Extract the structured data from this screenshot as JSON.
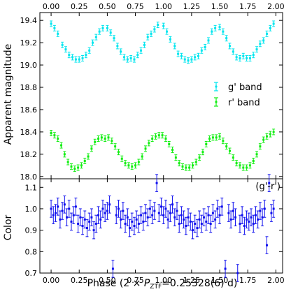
{
  "chart_data": [
    {
      "type": "scatter",
      "panel": "top",
      "xlabel": "",
      "ylabel": "Apparent magnitude",
      "xlim": [
        -0.1,
        2.06
      ],
      "ylim": [
        19.47,
        17.98
      ],
      "y_inverted": true,
      "x_ticks": [
        "0.00",
        "0.25",
        "0.50",
        "0.75",
        "1.00",
        "1.25",
        "1.50",
        "1.75",
        "2.00"
      ],
      "x_tick_values": [
        0,
        0.25,
        0.5,
        0.75,
        1.0,
        1.25,
        1.5,
        1.75,
        2.0
      ],
      "y_ticks": [
        "18.0",
        "18.2",
        "18.4",
        "18.6",
        "18.8",
        "19.0",
        "19.2",
        "19.4"
      ],
      "y_tick_values": [
        18.0,
        18.2,
        18.4,
        18.6,
        18.8,
        19.0,
        19.2,
        19.4
      ],
      "legend_position": "right-center",
      "series": [
        {
          "name": "g' band",
          "color": "#00e5ee",
          "marker": "errorbar",
          "x": [
            0.0,
            0.03,
            0.06,
            0.1,
            0.13,
            0.16,
            0.19,
            0.22,
            0.25,
            0.28,
            0.31,
            0.34,
            0.37,
            0.4,
            0.43,
            0.46,
            0.5,
            0.53,
            0.56,
            0.59,
            0.62,
            0.65,
            0.68,
            0.71,
            0.74,
            0.77,
            0.8,
            0.83,
            0.86,
            0.89,
            0.92,
            0.95,
            1.0,
            1.03,
            1.06,
            1.1,
            1.13,
            1.16,
            1.19,
            1.22,
            1.25,
            1.28,
            1.31,
            1.34,
            1.37,
            1.4,
            1.43,
            1.46,
            1.5,
            1.53,
            1.56,
            1.59,
            1.62,
            1.65,
            1.68,
            1.71,
            1.74,
            1.77,
            1.8,
            1.83,
            1.86,
            1.89,
            1.92,
            1.95,
            1.98
          ],
          "y": [
            19.37,
            19.33,
            19.28,
            19.18,
            19.14,
            19.09,
            19.07,
            19.05,
            19.05,
            19.06,
            19.09,
            19.13,
            19.2,
            19.25,
            19.3,
            19.33,
            19.33,
            19.29,
            19.24,
            19.17,
            19.12,
            19.07,
            19.05,
            19.06,
            19.05,
            19.09,
            19.13,
            19.18,
            19.25,
            19.28,
            19.32,
            19.36,
            19.35,
            19.3,
            19.23,
            19.17,
            19.1,
            19.08,
            19.05,
            19.04,
            19.05,
            19.07,
            19.08,
            19.13,
            19.16,
            19.22,
            19.3,
            19.33,
            19.34,
            19.3,
            19.24,
            19.17,
            19.12,
            19.07,
            19.06,
            19.08,
            19.06,
            19.06,
            19.09,
            19.14,
            19.19,
            19.22,
            19.28,
            19.33,
            19.37
          ],
          "yerr": 0.025
        },
        {
          "name": "r' band",
          "color": "#11ee11",
          "marker": "errorbar",
          "x": [
            0.0,
            0.03,
            0.06,
            0.09,
            0.12,
            0.15,
            0.18,
            0.21,
            0.24,
            0.27,
            0.3,
            0.33,
            0.36,
            0.39,
            0.42,
            0.45,
            0.48,
            0.51,
            0.54,
            0.57,
            0.6,
            0.63,
            0.66,
            0.69,
            0.72,
            0.75,
            0.78,
            0.81,
            0.84,
            0.87,
            0.9,
            0.93,
            0.96,
            0.99,
            1.02,
            1.05,
            1.08,
            1.11,
            1.14,
            1.17,
            1.2,
            1.23,
            1.26,
            1.29,
            1.32,
            1.35,
            1.38,
            1.41,
            1.44,
            1.47,
            1.5,
            1.53,
            1.56,
            1.59,
            1.62,
            1.65,
            1.68,
            1.71,
            1.74,
            1.77,
            1.8,
            1.83,
            1.86,
            1.89,
            1.92,
            1.95,
            1.98
          ],
          "y": [
            18.39,
            18.37,
            18.34,
            18.28,
            18.2,
            18.13,
            18.09,
            18.07,
            18.08,
            18.1,
            18.14,
            18.18,
            18.25,
            18.31,
            18.34,
            18.35,
            18.34,
            18.35,
            18.32,
            18.27,
            18.22,
            18.16,
            18.12,
            18.1,
            18.09,
            18.1,
            18.13,
            18.18,
            18.25,
            18.3,
            18.34,
            18.36,
            18.37,
            18.37,
            18.34,
            18.29,
            18.24,
            18.17,
            18.12,
            18.09,
            18.08,
            18.08,
            18.1,
            18.13,
            18.17,
            18.22,
            18.29,
            18.34,
            18.35,
            18.35,
            18.36,
            18.32,
            18.27,
            18.23,
            18.17,
            18.12,
            18.1,
            18.08,
            18.08,
            18.1,
            18.14,
            18.2,
            18.27,
            18.33,
            18.36,
            18.38,
            18.4
          ],
          "yerr": 0.025
        }
      ]
    },
    {
      "type": "scatter",
      "panel": "bottom",
      "xlabel": "Phase (2 × P_ZTF=0.25328(6) d)",
      "ylabel": "Color",
      "annotation": "(g'-r')",
      "xlim": [
        -0.1,
        2.06
      ],
      "ylim": [
        1.14,
        0.7
      ],
      "y_inverted": true,
      "x_ticks": [
        "0.00",
        "0.25",
        "0.50",
        "0.75",
        "1.00",
        "1.25",
        "1.50",
        "1.75",
        "2.00"
      ],
      "x_tick_values": [
        0,
        0.25,
        0.5,
        0.75,
        1.0,
        1.25,
        1.5,
        1.75,
        2.0
      ],
      "y_ticks": [
        "0.7",
        "0.8",
        "0.9",
        "1.0",
        "1.1"
      ],
      "y_tick_values": [
        0.7,
        0.8,
        0.9,
        1.0,
        1.1
      ],
      "series": [
        {
          "color": "#1010ee",
          "marker": "errorbar",
          "x": [
            0.0,
            0.02,
            0.04,
            0.06,
            0.08,
            0.1,
            0.12,
            0.14,
            0.16,
            0.18,
            0.2,
            0.22,
            0.24,
            0.26,
            0.28,
            0.3,
            0.32,
            0.34,
            0.36,
            0.38,
            0.4,
            0.42,
            0.44,
            0.46,
            0.48,
            0.5,
            0.52,
            0.55,
            0.58,
            0.6,
            0.62,
            0.64,
            0.66,
            0.68,
            0.7,
            0.72,
            0.74,
            0.76,
            0.78,
            0.8,
            0.82,
            0.84,
            0.86,
            0.88,
            0.9,
            0.92,
            0.94,
            0.96,
            0.98,
            1.0,
            1.02,
            1.04,
            1.06,
            1.08,
            1.1,
            1.12,
            1.14,
            1.16,
            1.18,
            1.2,
            1.22,
            1.24,
            1.26,
            1.28,
            1.3,
            1.32,
            1.34,
            1.36,
            1.38,
            1.4,
            1.42,
            1.44,
            1.46,
            1.48,
            1.5,
            1.52,
            1.55,
            1.58,
            1.6,
            1.62,
            1.64,
            1.66,
            1.68,
            1.7,
            1.72,
            1.74,
            1.76,
            1.78,
            1.8,
            1.82,
            1.84,
            1.86,
            1.88,
            1.9,
            1.92,
            1.94,
            1.96,
            1.98
          ],
          "y": [
            1.0,
            0.97,
            0.98,
            1.01,
            0.95,
            0.99,
            1.02,
            0.96,
            1.0,
            0.94,
            0.97,
            1.01,
            0.93,
            0.96,
            0.92,
            0.95,
            0.91,
            0.94,
            0.96,
            0.9,
            0.93,
            0.97,
            0.95,
            1.0,
            0.98,
            0.99,
            1.02,
            0.72,
            0.97,
            1.0,
            0.95,
            0.99,
            0.93,
            0.96,
            0.91,
            0.94,
            0.92,
            0.95,
            0.93,
            0.97,
            0.94,
            0.98,
            0.96,
            1.0,
            0.97,
            0.99,
            1.12,
            0.98,
            1.01,
            0.97,
            1.0,
            0.95,
            0.98,
            1.02,
            0.96,
            0.99,
            0.93,
            0.97,
            0.95,
            0.92,
            0.96,
            0.94,
            0.9,
            0.93,
            0.91,
            0.95,
            0.93,
            0.96,
            0.94,
            0.97,
            0.93,
            0.98,
            0.95,
            1.0,
            0.97,
            1.01,
            0.72,
            0.98,
            0.95,
            0.99,
            0.96,
            0.7,
            0.93,
            0.97,
            0.92,
            0.95,
            0.94,
            0.96,
            0.93,
            0.97,
            0.95,
            0.99,
            0.96,
            1.0,
            0.83,
            1.12,
            0.98,
            1.0
          ],
          "yerr": 0.04
        }
      ]
    }
  ],
  "legend": {
    "g_label": "g' band",
    "r_label": "r' band"
  },
  "labels": {
    "ylabel_top": "Apparent magnitude",
    "ylabel_bottom": "Color",
    "annotation": "(g'-r')",
    "xlabel_prefix": "Phase (2 × ",
    "xlabel_P": "P",
    "xlabel_sub": "ZTF",
    "xlabel_suffix": "=0.25328(6) d)"
  }
}
